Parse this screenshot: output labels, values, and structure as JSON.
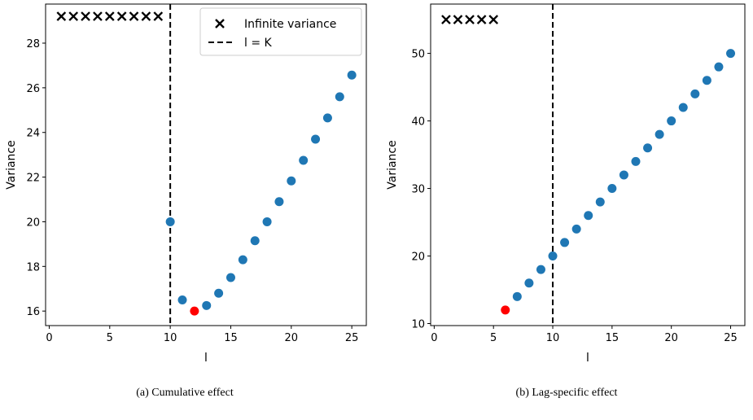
{
  "chart_data": [
    {
      "type": "scatter",
      "caption": "(a) Cumulative effect",
      "xlabel": "l",
      "ylabel": "Variance",
      "xlim": [
        -0.3,
        26.2
      ],
      "ylim": [
        15.35,
        29.75
      ],
      "xticks": [
        0,
        5,
        10,
        15,
        20,
        25
      ],
      "yticks": [
        16,
        18,
        20,
        22,
        24,
        26,
        28
      ],
      "vline": {
        "x": 10,
        "label": "l = K",
        "style": "dashed",
        "color": "#000000"
      },
      "series": [
        {
          "name": "Infinite variance",
          "marker": "x",
          "color": "#000000",
          "x": [
            1,
            2,
            3,
            4,
            5,
            6,
            7,
            8,
            9
          ],
          "y": [
            29.2,
            29.2,
            29.2,
            29.2,
            29.2,
            29.2,
            29.2,
            29.2,
            29.2
          ]
        },
        {
          "marker": "o",
          "color": "#1f77b4",
          "x": [
            10,
            11,
            13,
            14,
            15,
            16,
            17,
            18,
            19,
            20,
            21,
            22,
            23,
            24,
            25
          ],
          "y": [
            20.0,
            16.5,
            16.25,
            16.8,
            17.5,
            18.3,
            19.15,
            20.0,
            20.9,
            21.83,
            22.75,
            23.7,
            24.65,
            25.6,
            26.57
          ]
        },
        {
          "marker": "o",
          "color": "#ff0000",
          "x": [
            12
          ],
          "y": [
            16.0
          ]
        }
      ],
      "legend": {
        "position": "top-right",
        "entries": [
          "Infinite variance",
          "l = K"
        ]
      }
    },
    {
      "type": "scatter",
      "caption": "(b) Lag-specific effect",
      "xlabel": "l",
      "ylabel": "Variance",
      "xlim": [
        -0.3,
        26.2
      ],
      "ylim": [
        9.7,
        57.3
      ],
      "xticks": [
        0,
        5,
        10,
        15,
        20,
        25
      ],
      "yticks": [
        10,
        20,
        30,
        40,
        50
      ],
      "vline": {
        "x": 10,
        "style": "dashed",
        "color": "#000000"
      },
      "series": [
        {
          "marker": "x",
          "color": "#000000",
          "x": [
            1,
            2,
            3,
            4,
            5
          ],
          "y": [
            55,
            55,
            55,
            55,
            55
          ]
        },
        {
          "marker": "o",
          "color": "#1f77b4",
          "x": [
            7,
            8,
            9,
            10,
            11,
            12,
            13,
            14,
            15,
            16,
            17,
            18,
            19,
            20,
            21,
            22,
            23,
            24,
            25
          ],
          "y": [
            14,
            16,
            18,
            20,
            22,
            24,
            26,
            28,
            30,
            32,
            34,
            36,
            38,
            40,
            42,
            44,
            46,
            48,
            50
          ]
        },
        {
          "marker": "o",
          "color": "#ff0000",
          "x": [
            6
          ],
          "y": [
            12
          ]
        }
      ]
    }
  ]
}
